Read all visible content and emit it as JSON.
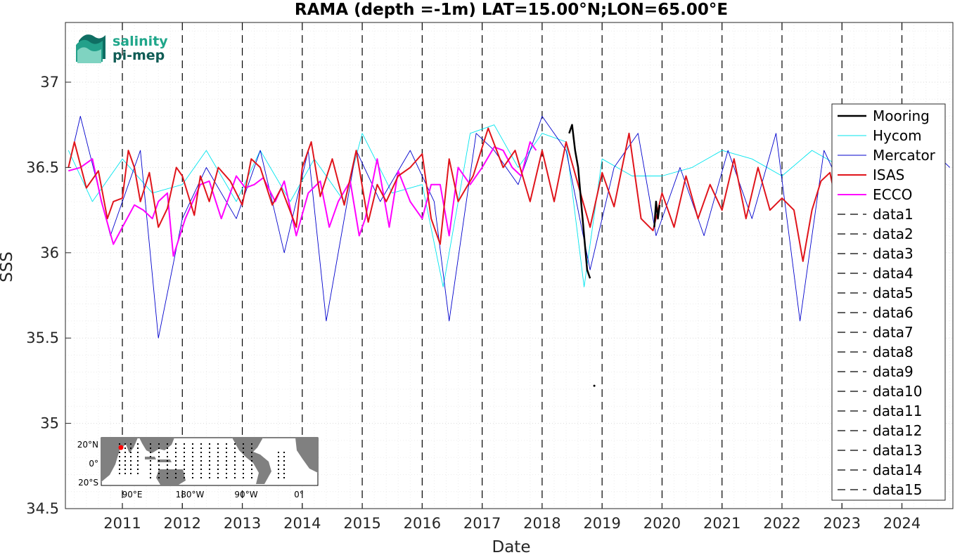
{
  "chart_data": {
    "type": "line",
    "title": "RAMA (depth =-1m) LAT=15.00°N;LON=65.00°E",
    "xlabel": "Date",
    "ylabel": "SSS",
    "xlim": [
      2010.05,
      2024.85
    ],
    "ylim": [
      34.5,
      37.35
    ],
    "x_ticks": [
      2011,
      2012,
      2013,
      2014,
      2015,
      2016,
      2017,
      2018,
      2019,
      2020,
      2021,
      2022,
      2023,
      2024
    ],
    "x_tick_labels": [
      "2011",
      "2012",
      "2013",
      "2014",
      "2015",
      "2016",
      "2017",
      "2018",
      "2019",
      "2020",
      "2021",
      "2022",
      "2023",
      "2024"
    ],
    "y_ticks": [
      34.5,
      35,
      35.5,
      36,
      36.5,
      37
    ],
    "y_tick_labels": [
      "34.5",
      "35",
      "35.5",
      "36",
      "36.5",
      "37"
    ],
    "grid": true,
    "legend_position": "right",
    "vertical_dashed_lines_x": [
      2011,
      2012,
      2013,
      2014,
      2015,
      2016,
      2017,
      2018,
      2019,
      2020,
      2021,
      2022,
      2023,
      2024
    ],
    "series": [
      {
        "name": "Mooring",
        "color": "#000000",
        "style": "solid-marker",
        "segments": [
          {
            "x": [
              2018.45,
              2018.5,
              2018.55,
              2018.6,
              2018.65,
              2018.7,
              2018.75,
              2018.8
            ],
            "y": [
              36.7,
              36.75,
              36.6,
              36.5,
              36.3,
              36.1,
              35.9,
              35.85
            ]
          },
          {
            "x": [
              2019.87,
              2019.9,
              2019.93,
              2019.96
            ],
            "y": [
              36.15,
              36.3,
              36.2,
              36.28
            ]
          }
        ],
        "points": [
          {
            "x": 2018.87,
            "y": 35.22
          }
        ]
      },
      {
        "name": "Hycom",
        "color": "#00e5ee",
        "style": "solid",
        "x": [
          2010.1,
          2010.5,
          2011.0,
          2011.5,
          2012.0,
          2012.4,
          2012.9,
          2013.3,
          2013.8,
          2014.2,
          2014.7,
          2015.0,
          2015.5,
          2016.0,
          2016.35,
          2016.8,
          2017.2,
          2017.6,
          2018.0,
          2018.4,
          2018.7,
          2019.0,
          2019.5,
          2020.0,
          2020.5,
          2021.0,
          2021.5,
          2022.0,
          2022.5,
          2023.0
        ],
        "y": [
          36.6,
          36.3,
          36.55,
          36.35,
          36.4,
          36.6,
          36.3,
          36.6,
          36.3,
          36.55,
          36.3,
          36.7,
          36.35,
          36.4,
          35.8,
          36.7,
          36.75,
          36.5,
          36.7,
          36.65,
          35.8,
          36.55,
          36.45,
          36.45,
          36.5,
          36.6,
          36.55,
          36.45,
          36.6,
          36.5
        ]
      },
      {
        "name": "Mercator",
        "color": "#0000cd",
        "style": "solid",
        "x": [
          2010.1,
          2010.3,
          2010.8,
          2011.3,
          2011.6,
          2012.0,
          2012.4,
          2012.9,
          2013.3,
          2013.7,
          2014.1,
          2014.4,
          2014.9,
          2015.3,
          2015.8,
          2016.2,
          2016.45,
          2016.9,
          2017.2,
          2017.6,
          2018.0,
          2018.4,
          2018.8,
          2019.2,
          2019.6,
          2019.9,
          2020.3,
          2020.7,
          2021.1,
          2021.5,
          2021.9,
          2022.3,
          2022.7,
          2023.1,
          2023.6,
          2024.0,
          2024.5,
          2024.8
        ],
        "y": [
          36.5,
          36.8,
          36.1,
          36.6,
          35.5,
          36.2,
          36.5,
          36.2,
          36.6,
          36.0,
          36.6,
          35.6,
          36.6,
          36.3,
          36.6,
          36.3,
          35.6,
          36.7,
          36.6,
          36.4,
          36.8,
          36.6,
          35.9,
          36.5,
          36.7,
          36.1,
          36.5,
          36.1,
          36.6,
          36.2,
          36.7,
          35.6,
          36.6,
          36.3,
          36.8,
          36.5,
          36.6,
          36.5
        ]
      },
      {
        "name": "ISAS",
        "color": "#e0141b",
        "style": "solid",
        "x": [
          2010.1,
          2010.2,
          2010.4,
          2010.6,
          2010.75,
          2010.85,
          2011.0,
          2011.1,
          2011.2,
          2011.3,
          2011.45,
          2011.6,
          2011.75,
          2011.9,
          2012.0,
          2012.2,
          2012.3,
          2012.45,
          2012.6,
          2012.8,
          2013.0,
          2013.15,
          2013.3,
          2013.5,
          2013.65,
          2013.9,
          2014.0,
          2014.15,
          2014.3,
          2014.5,
          2014.7,
          2014.9,
          2015.1,
          2015.25,
          2015.4,
          2015.6,
          2015.8,
          2016.0,
          2016.15,
          2016.3,
          2016.45,
          2016.6,
          2016.85,
          2017.1,
          2017.35,
          2017.55,
          2017.8,
          2018.0,
          2018.2,
          2018.4,
          2018.6,
          2018.8,
          2019.0,
          2019.2,
          2019.45,
          2019.65,
          2019.85,
          2020.0,
          2020.2,
          2020.4,
          2020.6,
          2020.8,
          2021.0,
          2021.2,
          2021.4,
          2021.6,
          2021.8,
          2022.0,
          2022.2,
          2022.35,
          2022.5,
          2022.65,
          2022.8,
          2022.9,
          2023.0
        ],
        "y": [
          36.5,
          36.65,
          36.38,
          36.48,
          36.2,
          36.3,
          36.32,
          36.6,
          36.5,
          36.3,
          36.47,
          36.15,
          36.26,
          36.5,
          36.45,
          36.22,
          36.45,
          36.3,
          36.5,
          36.42,
          36.28,
          36.55,
          36.5,
          36.28,
          36.38,
          36.15,
          36.5,
          36.65,
          36.33,
          36.55,
          36.28,
          36.6,
          36.18,
          36.4,
          36.3,
          36.45,
          36.5,
          36.58,
          36.2,
          36.05,
          36.55,
          36.3,
          36.45,
          36.73,
          36.5,
          36.6,
          36.3,
          36.6,
          36.3,
          36.65,
          36.4,
          36.15,
          36.47,
          36.27,
          36.7,
          36.2,
          36.13,
          36.35,
          36.15,
          36.45,
          36.2,
          36.4,
          36.25,
          36.55,
          36.2,
          36.5,
          36.25,
          36.32,
          36.25,
          35.95,
          36.25,
          36.42,
          36.47,
          36.3,
          36.5
        ]
      },
      {
        "name": "ECCO",
        "color": "#ff00ff",
        "style": "solid",
        "x": [
          2010.1,
          2010.3,
          2010.5,
          2010.65,
          2010.85,
          2011.0,
          2011.2,
          2011.35,
          2011.5,
          2011.6,
          2011.75,
          2011.85,
          2012.05,
          2012.3,
          2012.45,
          2012.65,
          2012.9,
          2013.05,
          2013.2,
          2013.35,
          2013.55,
          2013.7,
          2013.9,
          2014.1,
          2014.3,
          2014.45,
          2014.6,
          2014.8,
          2014.95,
          2015.05,
          2015.25,
          2015.45,
          2015.6,
          2015.8,
          2016.0,
          2016.15,
          2016.3,
          2016.45,
          2016.6,
          2016.8,
          2017.0,
          2017.2,
          2017.35,
          2017.5,
          2017.65,
          2017.8,
          2017.9
        ],
        "y": [
          36.48,
          36.5,
          36.55,
          36.3,
          36.05,
          36.15,
          36.28,
          36.25,
          36.2,
          36.3,
          36.35,
          35.98,
          36.2,
          36.4,
          36.42,
          36.2,
          36.45,
          36.38,
          36.4,
          36.44,
          36.3,
          36.42,
          36.1,
          36.35,
          36.42,
          36.15,
          36.3,
          36.42,
          36.1,
          36.2,
          36.55,
          36.15,
          36.48,
          36.3,
          36.2,
          36.4,
          36.4,
          36.1,
          36.5,
          36.4,
          36.5,
          36.62,
          36.6,
          36.5,
          36.45,
          36.65,
          36.6
        ]
      }
    ]
  },
  "legend": {
    "labels": [
      "Mooring",
      "Hycom",
      "Mercator",
      "ISAS",
      "ECCO",
      "data1",
      "data2",
      "data3",
      "data4",
      "data5",
      "data6",
      "data7",
      "data8",
      "data9",
      "data10",
      "data11",
      "data12",
      "data13",
      "data14",
      "data15"
    ],
    "colors": [
      "#000000",
      "#00e5ee",
      "#0000cd",
      "#e0141b",
      "#ff00ff",
      "#000000",
      "#000000",
      "#000000",
      "#000000",
      "#000000",
      "#000000",
      "#000000",
      "#000000",
      "#000000",
      "#000000",
      "#000000",
      "#000000",
      "#000000",
      "#000000",
      "#000000"
    ]
  },
  "inset_map": {
    "lat_labels": [
      "20°N",
      "0°",
      "20°S"
    ],
    "lon_labels": [
      "90°E",
      "180°W",
      "90°W",
      "0°"
    ],
    "marker_color": "#ff0000",
    "land_color": "#808080"
  },
  "logo": {
    "line1": "salinity",
    "line2": "pi-mep"
  }
}
